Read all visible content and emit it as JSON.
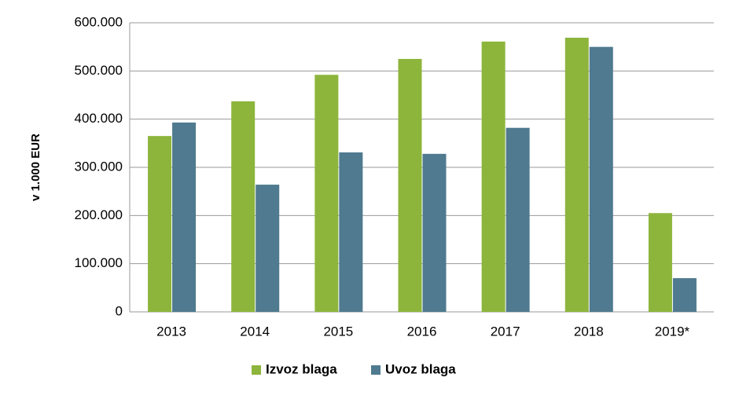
{
  "chart_data": {
    "type": "bar",
    "y_label": "v 1.000 EUR",
    "categories": [
      "2013",
      "2014",
      "2015",
      "2016",
      "2017",
      "2018",
      "2019*"
    ],
    "series": [
      {
        "name": "Izvoz blaga",
        "color": "#8db53c",
        "values": [
          365000,
          437000,
          492000,
          525000,
          561000,
          569000,
          205000
        ]
      },
      {
        "name": "Uvoz blaga",
        "color": "#4f7a8f",
        "values": [
          393000,
          264000,
          331000,
          328000,
          382000,
          550000,
          70000
        ]
      }
    ],
    "ylim": [
      0,
      600000
    ],
    "yticks": [
      0,
      {
        "value": 100000,
        "label": "100.000"
      },
      {
        "value": 200000,
        "label": "200.000"
      },
      {
        "value": 300000,
        "label": "300.000"
      },
      {
        "value": 400000,
        "label": "400.000"
      },
      {
        "value": 500000,
        "label": "500.000"
      },
      {
        "value": 600000,
        "label": "600.000"
      }
    ],
    "grid": true,
    "legend": "bottom"
  }
}
